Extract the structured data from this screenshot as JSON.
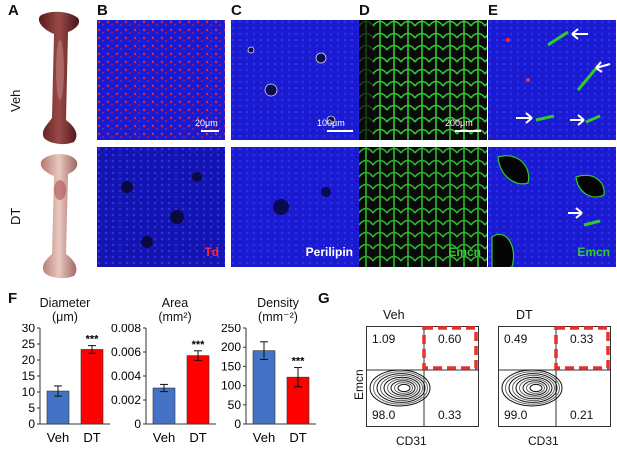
{
  "panels": {
    "A": "A",
    "B": "B",
    "C": "C",
    "D": "D",
    "E": "E",
    "F": "F",
    "G": "G"
  },
  "row_labels": {
    "top": "Veh",
    "bottom": "DT"
  },
  "micrographs": {
    "B": {
      "stain": "Td",
      "stain_color": "#ff2a2a",
      "scale": "20μm"
    },
    "C": {
      "stain": "Perilipin",
      "stain_color": "#ffffff",
      "scale": "100μm"
    },
    "D": {
      "stain": "Emcn",
      "stain_color": "#33cc33",
      "scale": "200μm"
    },
    "E": {
      "stain": "Emcn",
      "stain_color": "#33cc33"
    }
  },
  "colors": {
    "veh": "#4472c4",
    "dt": "#ff0000",
    "nuclei": "#1a1ad0",
    "vessel": "#2ecc2e",
    "gate": "#e8312a"
  },
  "chart_data": [
    {
      "type": "bar",
      "title": "Diameter",
      "unit": "(μm)",
      "categories": [
        "Veh",
        "DT"
      ],
      "values": [
        10.3,
        23.3
      ],
      "errors": [
        1.6,
        1.2
      ],
      "ylim": [
        0,
        30
      ],
      "ticks": [
        "0",
        "5",
        "10",
        "15",
        "20",
        "25",
        "30"
      ],
      "significance": [
        "",
        "***"
      ]
    },
    {
      "type": "bar",
      "title": "Area",
      "unit": "(mm²)",
      "categories": [
        "Veh",
        "DT"
      ],
      "values": [
        0.003,
        0.0057
      ],
      "errors": [
        0.0003,
        0.0004
      ],
      "ylim": [
        0,
        0.008
      ],
      "ticks": [
        "0",
        "0.002",
        "0.004",
        "0.006",
        "0.008"
      ],
      "significance": [
        "",
        "***"
      ]
    },
    {
      "type": "bar",
      "title": "Density",
      "unit": "(mm⁻²)",
      "categories": [
        "Veh",
        "DT"
      ],
      "values": [
        191,
        122
      ],
      "errors": [
        23,
        25
      ],
      "ylim": [
        0,
        250
      ],
      "ticks": [
        "0",
        "50",
        "100",
        "150",
        "200",
        "250"
      ],
      "significance": [
        "",
        "***"
      ]
    }
  ],
  "facs": {
    "xlabel": "CD31",
    "ylabel": "Emcn",
    "plots": [
      {
        "title": "Veh",
        "q_ul": "1.09",
        "q_ur": "0.60",
        "q_ll": "98.0",
        "q_lr": "0.33"
      },
      {
        "title": "DT",
        "q_ul": "0.49",
        "q_ur": "0.33",
        "q_ll": "99.0",
        "q_lr": "0.21"
      }
    ]
  }
}
